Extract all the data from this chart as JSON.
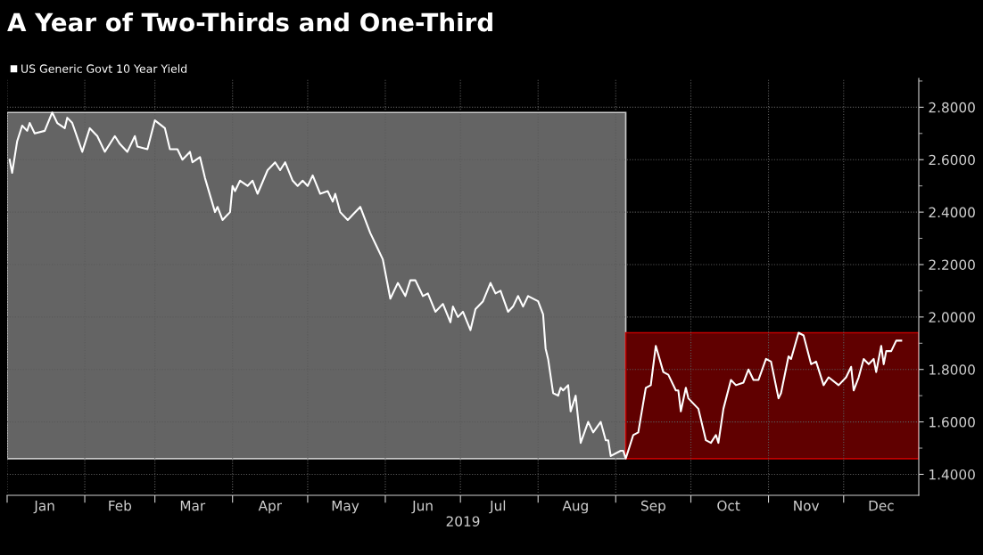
{
  "chart_data": {
    "type": "line",
    "title": "A Year of Two-Thirds and One-Third",
    "xlabel": "2019",
    "x": [
      "2019-01-02",
      "2019-01-03",
      "2019-01-05",
      "2019-01-07",
      "2019-01-09",
      "2019-01-10",
      "2019-01-12",
      "2019-01-16",
      "2019-01-19",
      "2019-01-21",
      "2019-01-24",
      "2019-01-25",
      "2019-01-27",
      "2019-01-31",
      "2019-02-03",
      "2019-02-06",
      "2019-02-09",
      "2019-02-13",
      "2019-02-15",
      "2019-02-18",
      "2019-02-21",
      "2019-02-22",
      "2019-02-26",
      "2019-03-01",
      "2019-03-05",
      "2019-03-07",
      "2019-03-10",
      "2019-03-12",
      "2019-03-15",
      "2019-03-16",
      "2019-03-19",
      "2019-03-21",
      "2019-03-25",
      "2019-03-26",
      "2019-03-28",
      "2019-03-31",
      "2019-04-01",
      "2019-04-02",
      "2019-04-04",
      "2019-04-07",
      "2019-04-09",
      "2019-04-11",
      "2019-04-15",
      "2019-04-18",
      "2019-04-20",
      "2019-04-22",
      "2019-04-25",
      "2019-04-27",
      "2019-04-29",
      "2019-05-01",
      "2019-05-03",
      "2019-05-06",
      "2019-05-09",
      "2019-05-11",
      "2019-05-12",
      "2019-05-14",
      "2019-05-17",
      "2019-05-19",
      "2019-05-22",
      "2019-05-26",
      "2019-05-29",
      "2019-05-31",
      "2019-06-02",
      "2019-06-03",
      "2019-06-06",
      "2019-06-09",
      "2019-06-11",
      "2019-06-13",
      "2019-06-16",
      "2019-06-18",
      "2019-06-21",
      "2019-06-24",
      "2019-06-27",
      "2019-06-28",
      "2019-06-30",
      "2019-07-02",
      "2019-07-05",
      "2019-07-07",
      "2019-07-10",
      "2019-07-13",
      "2019-07-15",
      "2019-07-17",
      "2019-07-20",
      "2019-07-22",
      "2019-07-24",
      "2019-07-26",
      "2019-07-28",
      "2019-08-01",
      "2019-08-03",
      "2019-08-04",
      "2019-08-05",
      "2019-08-07",
      "2019-08-09",
      "2019-08-10",
      "2019-08-11",
      "2019-08-13",
      "2019-08-14",
      "2019-08-16",
      "2019-08-18",
      "2019-08-21",
      "2019-08-23",
      "2019-08-26",
      "2019-08-28",
      "2019-08-29",
      "2019-08-30",
      "2019-09-03",
      "2019-09-04",
      "2019-09-05",
      "2019-09-08",
      "2019-09-10",
      "2019-09-13",
      "2019-09-15",
      "2019-09-17",
      "2019-09-20",
      "2019-09-22",
      "2019-09-25",
      "2019-09-26",
      "2019-09-27",
      "2019-09-29",
      "2019-09-30",
      "2019-10-04",
      "2019-10-07",
      "2019-10-09",
      "2019-10-11",
      "2019-10-12",
      "2019-10-14",
      "2019-10-17",
      "2019-10-19",
      "2019-10-22",
      "2019-10-24",
      "2019-10-26",
      "2019-10-28",
      "2019-10-31",
      "2019-11-02",
      "2019-11-05",
      "2019-11-06",
      "2019-11-09",
      "2019-11-10",
      "2019-11-13",
      "2019-11-15",
      "2019-11-18",
      "2019-11-20",
      "2019-11-23",
      "2019-11-25",
      "2019-11-29",
      "2019-12-02",
      "2019-12-04",
      "2019-12-05",
      "2019-12-07",
      "2019-12-09",
      "2019-12-11",
      "2019-12-13",
      "2019-12-14",
      "2019-12-16",
      "2019-12-17",
      "2019-12-18",
      "2019-12-20",
      "2019-12-22",
      "2019-12-24"
    ],
    "series": [
      {
        "name": "US Generic Govt 10 Year Yield",
        "color": "#ffffff",
        "values": [
          2.6,
          2.55,
          2.67,
          2.73,
          2.71,
          2.74,
          2.7,
          2.71,
          2.78,
          2.74,
          2.72,
          2.76,
          2.74,
          2.63,
          2.72,
          2.69,
          2.63,
          2.69,
          2.66,
          2.63,
          2.69,
          2.65,
          2.64,
          2.75,
          2.72,
          2.64,
          2.64,
          2.6,
          2.63,
          2.59,
          2.61,
          2.53,
          2.4,
          2.42,
          2.37,
          2.4,
          2.5,
          2.48,
          2.52,
          2.5,
          2.52,
          2.47,
          2.56,
          2.59,
          2.56,
          2.59,
          2.52,
          2.5,
          2.52,
          2.5,
          2.54,
          2.47,
          2.48,
          2.44,
          2.47,
          2.4,
          2.37,
          2.39,
          2.42,
          2.32,
          2.26,
          2.22,
          2.12,
          2.07,
          2.13,
          2.08,
          2.14,
          2.14,
          2.08,
          2.09,
          2.02,
          2.05,
          1.98,
          2.04,
          2.0,
          2.02,
          1.95,
          2.03,
          2.06,
          2.13,
          2.09,
          2.1,
          2.02,
          2.04,
          2.08,
          2.04,
          2.08,
          2.06,
          2.01,
          1.88,
          1.84,
          1.71,
          1.7,
          1.73,
          1.72,
          1.74,
          1.64,
          1.7,
          1.52,
          1.6,
          1.56,
          1.6,
          1.53,
          1.53,
          1.47,
          1.49,
          1.49,
          1.46,
          1.55,
          1.56,
          1.73,
          1.74,
          1.89,
          1.79,
          1.78,
          1.72,
          1.72,
          1.64,
          1.73,
          1.69,
          1.65,
          1.53,
          1.52,
          1.55,
          1.52,
          1.65,
          1.76,
          1.74,
          1.75,
          1.8,
          1.76,
          1.76,
          1.84,
          1.83,
          1.69,
          1.71,
          1.85,
          1.84,
          1.94,
          1.93,
          1.82,
          1.83,
          1.74,
          1.77,
          1.74,
          1.77,
          1.81,
          1.72,
          1.77,
          1.84,
          1.82,
          1.84,
          1.79,
          1.89,
          1.82,
          1.87,
          1.87,
          1.91,
          1.91
        ]
      }
    ],
    "xlim": [
      "2019-01-01",
      "2019-12-31"
    ],
    "xticks": [
      {
        "value": "2019-01-01",
        "label": null
      },
      {
        "value": "2019-01-16",
        "label": "Jan"
      },
      {
        "value": "2019-02-01",
        "label": null
      },
      {
        "value": "2019-02-15",
        "label": "Feb"
      },
      {
        "value": "2019-03-01",
        "label": null
      },
      {
        "value": "2019-03-16",
        "label": "Mar"
      },
      {
        "value": "2019-04-01",
        "label": null
      },
      {
        "value": "2019-04-16",
        "label": "Apr"
      },
      {
        "value": "2019-05-01",
        "label": null
      },
      {
        "value": "2019-05-16",
        "label": "May"
      },
      {
        "value": "2019-06-01",
        "label": null
      },
      {
        "value": "2019-06-16",
        "label": "Jun"
      },
      {
        "value": "2019-07-01",
        "label": null
      },
      {
        "value": "2019-07-16",
        "label": "Jul"
      },
      {
        "value": "2019-08-01",
        "label": null
      },
      {
        "value": "2019-08-16",
        "label": "Aug"
      },
      {
        "value": "2019-09-01",
        "label": null
      },
      {
        "value": "2019-09-16",
        "label": "Sep"
      },
      {
        "value": "2019-10-01",
        "label": null
      },
      {
        "value": "2019-10-16",
        "label": "Oct"
      },
      {
        "value": "2019-11-01",
        "label": null
      },
      {
        "value": "2019-11-16",
        "label": "Nov"
      },
      {
        "value": "2019-12-01",
        "label": null
      },
      {
        "value": "2019-12-16",
        "label": "Dec"
      }
    ],
    "ylim": [
      1.32,
      2.91
    ],
    "yticks": [
      {
        "value": 1.4,
        "label": "1.4000"
      },
      {
        "value": 1.5,
        "label": null
      },
      {
        "value": 1.6,
        "label": "1.6000"
      },
      {
        "value": 1.7,
        "label": null
      },
      {
        "value": 1.8,
        "label": "1.8000"
      },
      {
        "value": 1.9,
        "label": null
      },
      {
        "value": 2.0,
        "label": "2.0000"
      },
      {
        "value": 2.1,
        "label": null
      },
      {
        "value": 2.2,
        "label": "2.2000"
      },
      {
        "value": 2.3,
        "label": null
      },
      {
        "value": 2.4,
        "label": "2.4000"
      },
      {
        "value": 2.5,
        "label": null
      },
      {
        "value": 2.6,
        "label": "2.6000"
      },
      {
        "value": 2.7,
        "label": null
      },
      {
        "value": 2.8,
        "label": "2.8000"
      },
      {
        "value": 2.9,
        "label": null
      }
    ],
    "bands": [
      {
        "axis": "x",
        "from": "2019-01-01",
        "to": "2019-09-05",
        "color": "#646464"
      },
      {
        "axis": "x",
        "from": "2019-09-05",
        "to": "2019-12-31",
        "color": "#600000"
      }
    ],
    "grid": true,
    "legend": "top left",
    "line_style": "solid",
    "marker": "none"
  }
}
